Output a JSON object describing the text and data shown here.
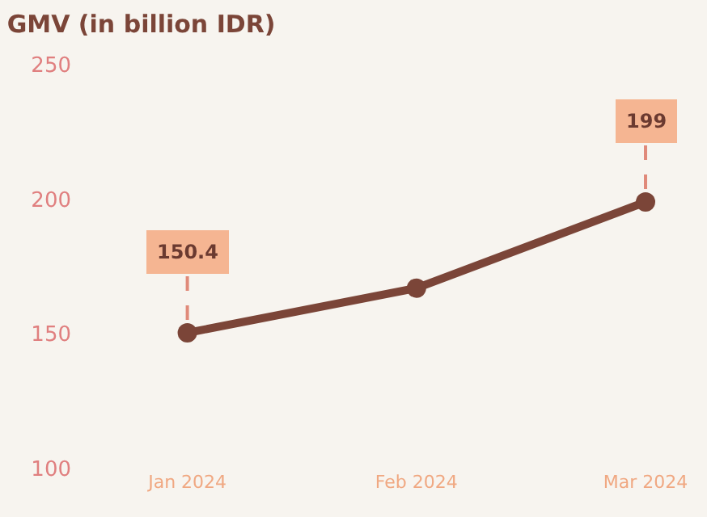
{
  "chart_data": {
    "type": "line",
    "title": "GMV (in billion IDR)",
    "categories": [
      "Jan 2024",
      "Feb 2024",
      "Mar 2024"
    ],
    "series": [
      {
        "color": "#7b4538",
        "values": [
          150.4,
          167,
          199
        ],
        "value_labels": [
          "150.4",
          null,
          "199"
        ]
      }
    ],
    "ylim": [
      100,
      250
    ],
    "yticks": [
      100,
      150,
      200,
      250
    ],
    "grid": false,
    "marker": "circle",
    "line_style": "solid",
    "legend": false
  }
}
